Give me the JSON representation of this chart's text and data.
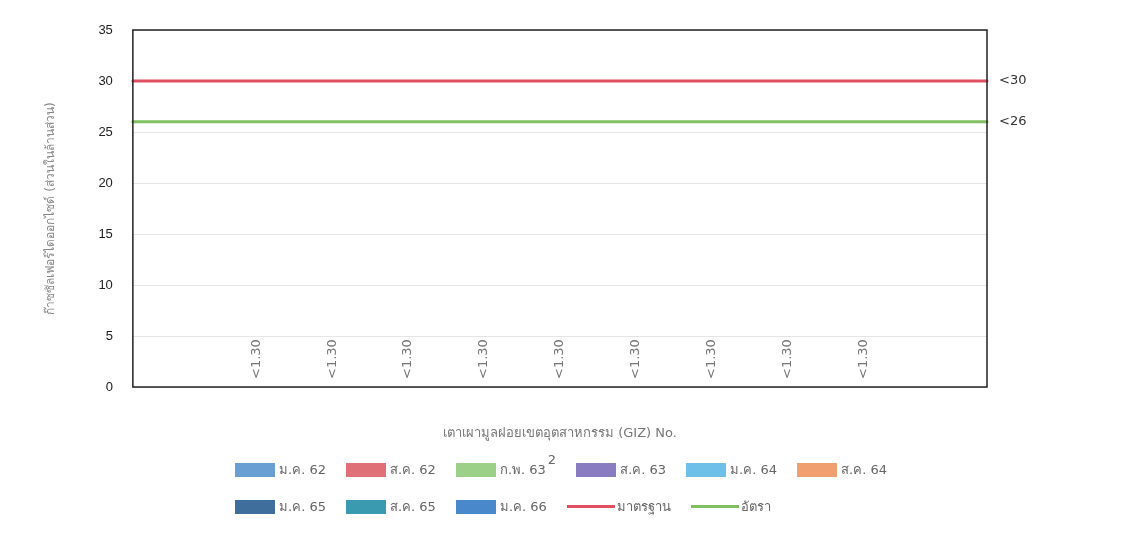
{
  "chart_data": {
    "type": "bar",
    "xlabel": "เตาเผามูลฝอยเขตอุตสาหกรรม (GIZ) No.",
    "ylabel": "ก๊าซซัลเฟอร์ไดออกไซด์ (ส่วนในล้านส่วน)",
    "categories": [
      null
    ],
    "ylim": [
      0,
      35
    ],
    "yticks": [
      0,
      5,
      10,
      15,
      20,
      25,
      30,
      35
    ],
    "grid": "y",
    "legend": "bottom",
    "annotations": [
      "2",
      "<30",
      "<26"
    ],
    "series": [
      {
        "name": "ม.ค. 62",
        "color": "#6a9fd4",
        "values": [
          null
        ],
        "value_labels": [
          "<1.30"
        ]
      },
      {
        "name": "ส.ค. 62",
        "color": "#e07078",
        "values": [
          null
        ],
        "value_labels": [
          "<1.30"
        ]
      },
      {
        "name": "ก.พ. 63",
        "color": "#9ccf88",
        "values": [
          null
        ],
        "value_labels": [
          "<1.30"
        ]
      },
      {
        "name": "ส.ค. 63",
        "color": "#8a7cc0",
        "values": [
          null
        ],
        "value_labels": [
          "<1.30"
        ]
      },
      {
        "name": "ม.ค. 64",
        "color": "#6ec0e8",
        "values": [
          null
        ],
        "value_labels": [
          "<1.30"
        ]
      },
      {
        "name": "ส.ค. 64",
        "color": "#f0a070",
        "values": [
          null
        ],
        "value_labels": [
          "<1.30"
        ]
      },
      {
        "name": "ม.ค. 65",
        "color": "#3f6e9c",
        "values": [
          null
        ],
        "value_labels": [
          "<1.30"
        ]
      },
      {
        "name": "ส.ค. 65",
        "color": "#3a9ab0",
        "values": [
          null
        ],
        "value_labels": [
          "<1.30"
        ]
      },
      {
        "name": "ม.ค. 66",
        "color": "#4a88cc",
        "values": [
          null
        ],
        "value_labels": [
          "<1.30"
        ]
      }
    ],
    "ref_lines": [
      {
        "axis": "y",
        "value": 30,
        "label": "มาตรฐาน",
        "color": "#e05060"
      },
      {
        "axis": "y",
        "value": 26,
        "label": "อัตรา",
        "color": "#80c060"
      }
    ]
  }
}
